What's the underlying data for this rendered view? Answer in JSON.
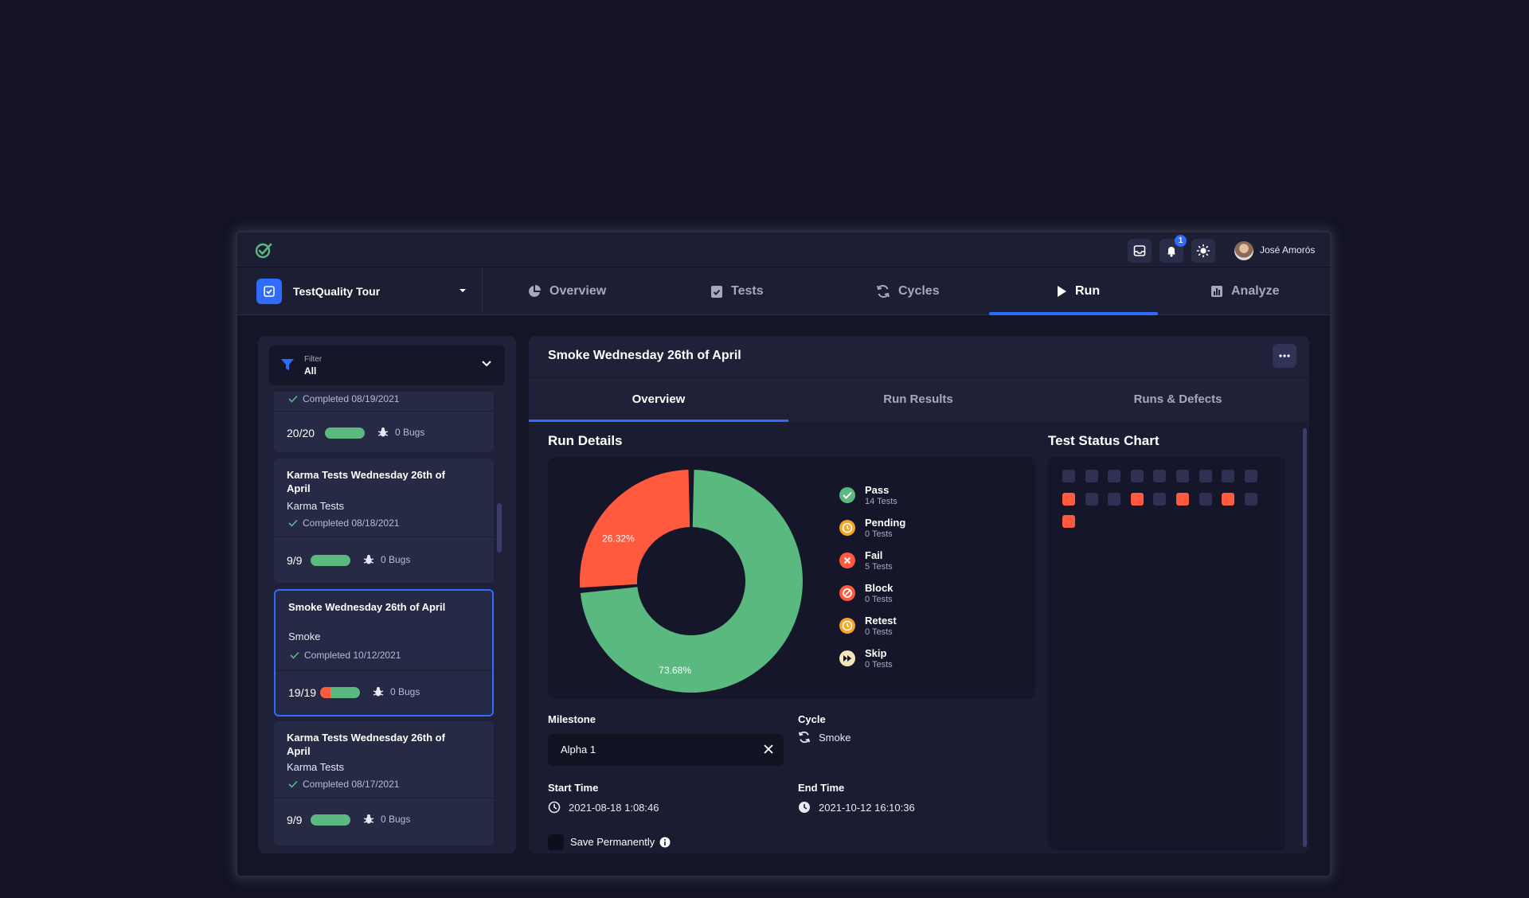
{
  "topbar": {
    "notification_count": "1",
    "user_name": "José Amorós"
  },
  "project": {
    "name": "TestQuality Tour"
  },
  "nav": {
    "tabs": [
      {
        "label": "Overview",
        "icon": "pie-icon"
      },
      {
        "label": "Tests",
        "icon": "clipboard-icon"
      },
      {
        "label": "Cycles",
        "icon": "cycle-icon"
      },
      {
        "label": "Run",
        "icon": "play-icon",
        "active": true
      },
      {
        "label": "Analyze",
        "icon": "bar-chart-icon"
      }
    ]
  },
  "filter": {
    "label": "Filter",
    "value": "All"
  },
  "runs": [
    {
      "completed": "Completed 08/19/2021",
      "count": "20/20",
      "fail_fraction": 0,
      "bugs": "0 Bugs"
    },
    {
      "title": "Karma Tests Wednesday 26th of April",
      "subtitle": "Karma Tests",
      "completed": "Completed 08/18/2021",
      "count": "9/9",
      "fail_fraction": 0,
      "bugs": "0 Bugs"
    },
    {
      "title": "Smoke Wednesday 26th of April",
      "subtitle": "Smoke",
      "completed": "Completed 10/12/2021",
      "count": "19/19",
      "fail_fraction": 0.26,
      "bugs": "0 Bugs",
      "selected": true
    },
    {
      "title": "Karma Tests Wednesday 26th of April",
      "subtitle": "Karma Tests",
      "completed": "Completed 08/17/2021",
      "count": "9/9",
      "fail_fraction": 0,
      "bugs": "0 Bugs"
    }
  ],
  "run_panel": {
    "title": "Smoke Wednesday 26th of April",
    "tabs": [
      "Overview",
      "Run Results",
      "Runs & Defects"
    ],
    "run_details_title": "Run Details",
    "test_status_title": "Test Status Chart",
    "milestone": {
      "label": "Milestone",
      "value": "Alpha 1"
    },
    "cycle": {
      "label": "Cycle",
      "value": "Smoke"
    },
    "start_time": {
      "label": "Start Time",
      "value": "2021-08-18 1:08:46"
    },
    "end_time": {
      "label": "End Time",
      "value": "2021-10-12 16:10:36"
    },
    "save_permanently": "Save Permanently"
  },
  "chart_data": {
    "type": "pie",
    "series": [
      {
        "name": "Pass",
        "count_label": "14 Tests",
        "value": 14,
        "color": "#59b97f",
        "percent_label": "73.68%"
      },
      {
        "name": "Pending",
        "count_label": "0 Tests",
        "value": 0,
        "color": "#f5a623"
      },
      {
        "name": "Fail",
        "count_label": "5 Tests",
        "value": 5,
        "color": "#ff5a3d",
        "percent_label": "26.32%"
      },
      {
        "name": "Block",
        "count_label": "0 Tests",
        "value": 0,
        "color": "#ff5a3d"
      },
      {
        "name": "Retest",
        "count_label": "0 Tests",
        "value": 0,
        "color": "#f5a623"
      },
      {
        "name": "Skip",
        "count_label": "0 Tests",
        "value": 0,
        "color": "#f3e6b8"
      }
    ]
  },
  "status_grid": {
    "cells": [
      "none",
      "none",
      "none",
      "none",
      "none",
      "none",
      "none",
      "none",
      "none",
      "fail",
      "none",
      "none",
      "fail",
      "none",
      "fail",
      "none",
      "fail",
      "none",
      "fail"
    ],
    "colors": {
      "none": "#2e3154",
      "fail": "#ff5a3d"
    }
  }
}
